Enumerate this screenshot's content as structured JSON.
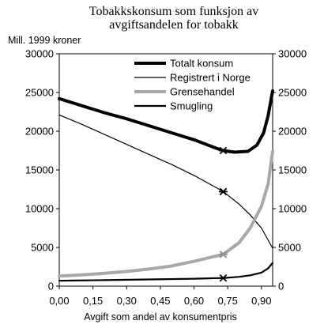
{
  "chart_data": {
    "type": "line",
    "title_lines": [
      "Tobakkskonsum som funksjon av",
      "avgiftsandelen for tobakk"
    ],
    "ylabel": "Mill. 1999 kroner",
    "xlabel": "Avgift som andel av konsumentpris",
    "x_ticks": [
      "0,00",
      "0,15",
      "0,30",
      "0,45",
      "0,60",
      "0,75",
      "0,90"
    ],
    "y_ticks": [
      "0",
      "5000",
      "10000",
      "15000",
      "20000",
      "25000",
      "30000"
    ],
    "xlim": [
      0,
      0.95
    ],
    "ylim": [
      0,
      30000
    ],
    "legend_position": "top-right",
    "marker_x": 0.73,
    "marker_symbol": "asterisk",
    "series": [
      {
        "name": "Totalt konsum",
        "color": "#000000",
        "line": "thick",
        "x": [
          0,
          0.1,
          0.2,
          0.3,
          0.4,
          0.5,
          0.6,
          0.7,
          0.73,
          0.78,
          0.84,
          0.88,
          0.91,
          0.93,
          0.95
        ],
        "y": [
          24200,
          23300,
          22400,
          21600,
          20700,
          19800,
          18900,
          17800,
          17500,
          17300,
          17400,
          18200,
          19800,
          22000,
          25200
        ]
      },
      {
        "name": "Registrert i Norge",
        "color": "#000000",
        "line": "thin",
        "x": [
          0,
          0.1,
          0.2,
          0.3,
          0.4,
          0.5,
          0.6,
          0.7,
          0.73,
          0.8,
          0.85,
          0.9,
          0.95
        ],
        "y": [
          22100,
          20900,
          19600,
          18300,
          17000,
          15700,
          14300,
          12700,
          12200,
          10600,
          9200,
          7500,
          4900
        ]
      },
      {
        "name": "Grensehandel",
        "color": "#a8a8a8",
        "line": "thick",
        "x": [
          0,
          0.1,
          0.2,
          0.3,
          0.4,
          0.5,
          0.6,
          0.7,
          0.73,
          0.8,
          0.85,
          0.9,
          0.93,
          0.95
        ],
        "y": [
          1300,
          1450,
          1650,
          1900,
          2200,
          2600,
          3200,
          3900,
          4100,
          5600,
          7500,
          10300,
          13200,
          17400
        ]
      },
      {
        "name": "Smugling",
        "color": "#000000",
        "line": "medium",
        "x": [
          0,
          0.2,
          0.4,
          0.6,
          0.73,
          0.8,
          0.85,
          0.9,
          0.93,
          0.95
        ],
        "y": [
          700,
          780,
          870,
          960,
          1050,
          1200,
          1400,
          1750,
          2300,
          3000
        ]
      }
    ]
  }
}
